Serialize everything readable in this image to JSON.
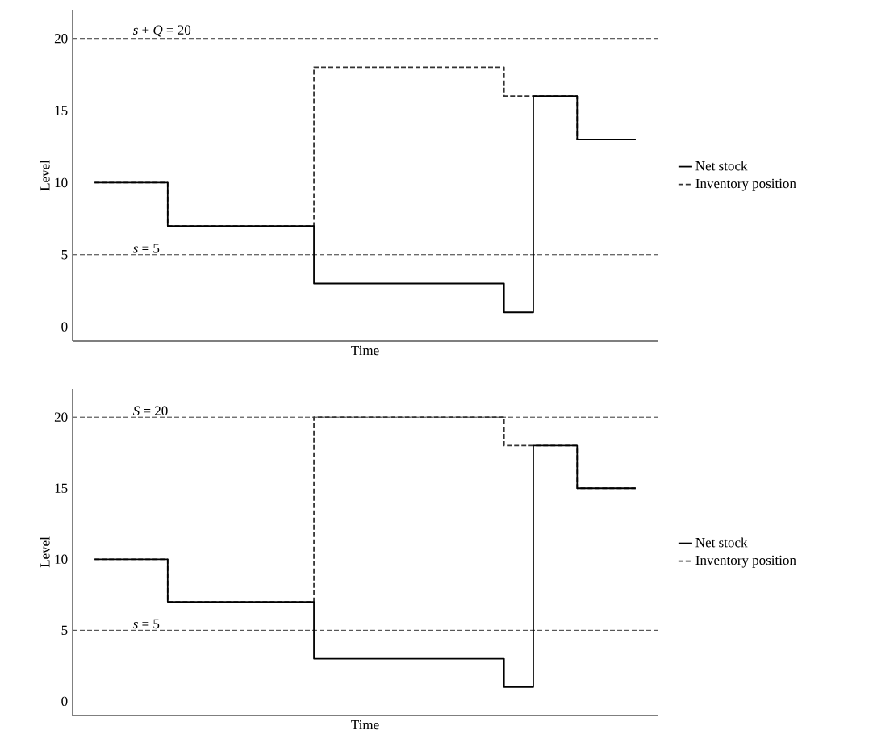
{
  "chart_data": [
    {
      "type": "step",
      "xlabel": "Time",
      "ylabel": "Level",
      "ylim": [
        -1,
        22
      ],
      "yticks": [
        0,
        5,
        10,
        15,
        20
      ],
      "legend": "right",
      "categories": [
        null,
        null,
        null,
        null,
        null,
        null,
        null,
        null,
        null,
        null,
        null,
        null,
        null,
        null,
        null,
        null,
        null,
        null,
        null,
        null,
        null,
        null,
        null,
        null,
        null,
        null,
        null,
        null,
        null,
        null,
        null,
        null,
        null,
        null,
        null,
        null,
        null,
        null,
        null,
        null
      ],
      "series": [
        {
          "name": "Net stock",
          "color": "#000000",
          "line_style": "solid",
          "values": [
            null,
            10,
            10,
            10,
            10,
            10,
            7,
            7,
            7,
            7,
            7,
            7,
            7,
            7,
            7,
            7,
            3,
            3,
            3,
            3,
            3,
            3,
            3,
            3,
            3,
            3,
            3,
            3,
            3,
            1,
            1,
            16,
            16,
            16,
            13,
            13,
            13,
            13,
            13,
            null
          ]
        },
        {
          "name": "Inventory position",
          "color": "#333333",
          "line_style": "dashed",
          "values": [
            null,
            10,
            10,
            10,
            10,
            10,
            7,
            7,
            7,
            7,
            7,
            7,
            7,
            7,
            7,
            7,
            18,
            18,
            18,
            18,
            18,
            18,
            18,
            18,
            18,
            18,
            18,
            18,
            18,
            16,
            16,
            16,
            16,
            16,
            13,
            13,
            13,
            13,
            13,
            null
          ]
        }
      ],
      "ref_lines": [
        {
          "axis": "y",
          "value": 20,
          "label": "*s* + *Q* = 20",
          "line_style": "dashed",
          "color": "#000000"
        },
        {
          "axis": "y",
          "value": 5,
          "label": "*s* = 5",
          "line_style": "dashed",
          "color": "#000000"
        }
      ]
    },
    {
      "type": "step",
      "xlabel": "Time",
      "ylabel": "Level",
      "ylim": [
        -1,
        22
      ],
      "yticks": [
        0,
        5,
        10,
        15,
        20
      ],
      "legend": "right",
      "categories": [
        null,
        null,
        null,
        null,
        null,
        null,
        null,
        null,
        null,
        null,
        null,
        null,
        null,
        null,
        null,
        null,
        null,
        null,
        null,
        null,
        null,
        null,
        null,
        null,
        null,
        null,
        null,
        null,
        null,
        null,
        null,
        null,
        null,
        null,
        null,
        null,
        null,
        null,
        null,
        null
      ],
      "series": [
        {
          "name": "Net stock",
          "color": "#000000",
          "line_style": "solid",
          "values": [
            null,
            10,
            10,
            10,
            10,
            10,
            7,
            7,
            7,
            7,
            7,
            7,
            7,
            7,
            7,
            7,
            3,
            3,
            3,
            3,
            3,
            3,
            3,
            3,
            3,
            3,
            3,
            3,
            3,
            1,
            1,
            18,
            18,
            18,
            15,
            15,
            15,
            15,
            15,
            null
          ]
        },
        {
          "name": "Inventory position",
          "color": "#333333",
          "line_style": "dashed",
          "values": [
            null,
            10,
            10,
            10,
            10,
            10,
            7,
            7,
            7,
            7,
            7,
            7,
            7,
            7,
            7,
            7,
            20,
            20,
            20,
            20,
            20,
            20,
            20,
            20,
            20,
            20,
            20,
            20,
            20,
            18,
            18,
            18,
            18,
            18,
            15,
            15,
            15,
            15,
            15,
            null
          ]
        }
      ],
      "ref_lines": [
        {
          "axis": "y",
          "value": 20,
          "label": "*S* = 20",
          "line_style": "dashed",
          "color": "#000000"
        },
        {
          "axis": "y",
          "value": 5,
          "label": "*s* = 5",
          "line_style": "dashed",
          "color": "#000000"
        }
      ]
    }
  ]
}
